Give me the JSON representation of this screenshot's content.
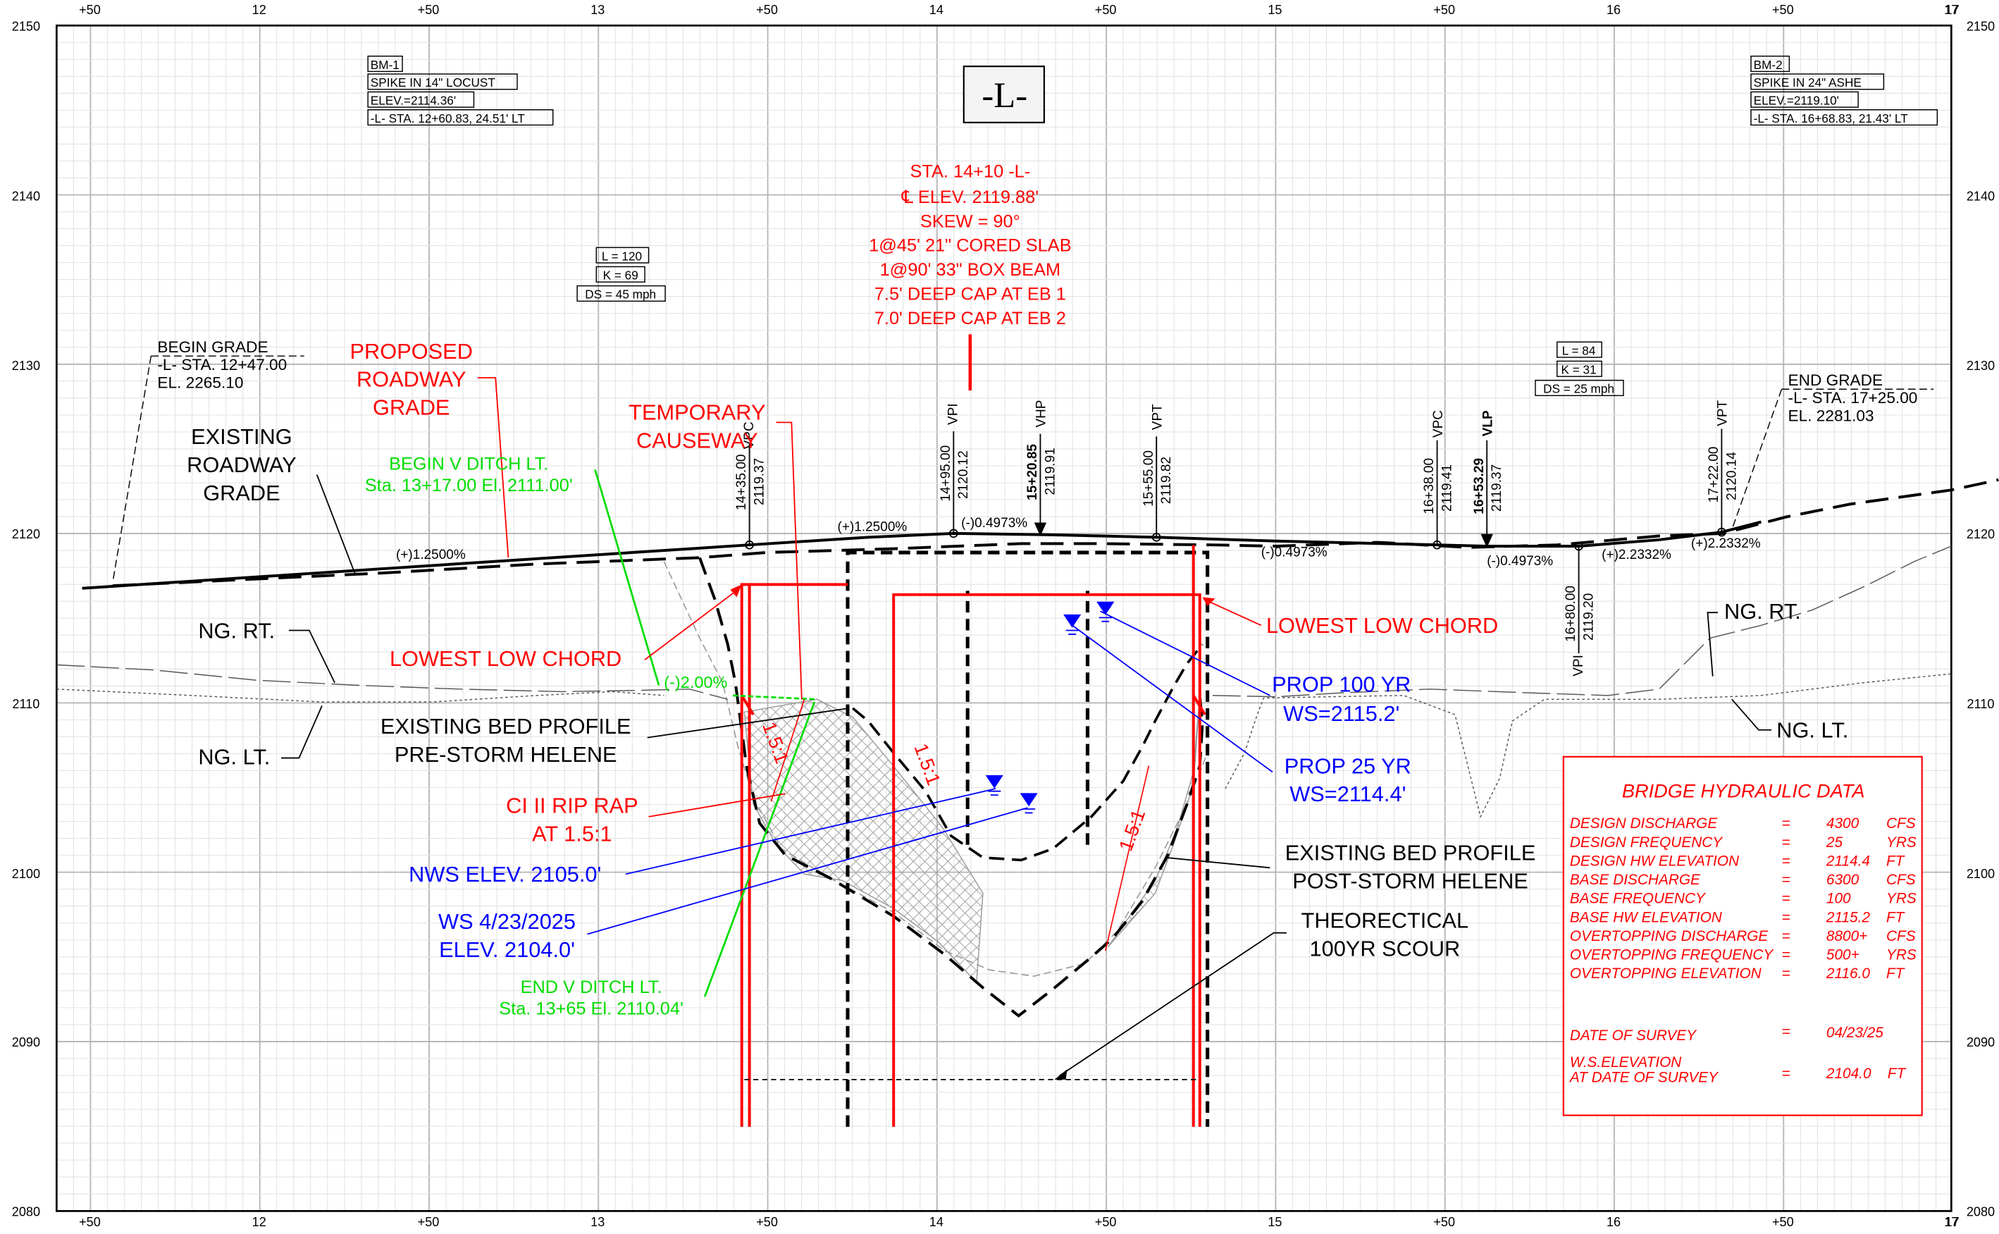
{
  "sheet": {
    "view_title": "-L-",
    "x_station_labels": [
      "+50",
      "12",
      "+50",
      "13",
      "+50",
      "14",
      "+50",
      "15",
      "+50",
      "16",
      "+50",
      "17"
    ],
    "y_elevation_labels": [
      "2150",
      "2140",
      "2130",
      "2120",
      "2110",
      "2100",
      "2090",
      "2080"
    ],
    "right_label_2120": "2120"
  },
  "colors": {
    "black": "#000000",
    "red": "#ff0000",
    "blue": "#0000ff",
    "green": "#00dd00",
    "grid_major": "#b4b4b4",
    "grid_minor": "#e3e3e3",
    "riprap": "#9a9a9a"
  },
  "benchmarks": [
    {
      "id": "BM-1",
      "lines": [
        "BM-1",
        "SPIKE IN 14\" LOCUST",
        "ELEV.=2114.36'",
        "-L- STA. 12+60.83, 24.51' LT"
      ]
    },
    {
      "id": "BM-2",
      "lines": [
        "BM-2",
        "SPIKE IN 24\" ASHE",
        "ELEV.=2119.10'",
        "-L- STA. 16+68.83, 21.43' LT"
      ]
    }
  ],
  "curves": [
    {
      "lines": [
        "L = 120",
        "K = 69",
        "DS = 45 mph"
      ]
    },
    {
      "lines": [
        "L = 84",
        "K = 31",
        "DS = 25 mph"
      ]
    }
  ],
  "bridge_note": [
    "STA. 14+10 -L-",
    "℄ ELEV. 2119.88'",
    "SKEW = 90°",
    "1@45'  21\" CORED SLAB",
    "1@90'  33\" BOX BEAM",
    "7.5' DEEP CAP AT EB 1",
    "7.0' DEEP CAP AT EB 2"
  ],
  "grade_points": [
    {
      "type": "VPC",
      "station": "14+35.00",
      "elev": "2119.37"
    },
    {
      "type": "VPI",
      "station": "14+95.00",
      "elev": "2120.12"
    },
    {
      "type": "VHP",
      "station": "15+20.85",
      "elev": "2119.91"
    },
    {
      "type": "VPT",
      "station": "15+55.00",
      "elev": "2119.82"
    },
    {
      "type": "VPC",
      "station": "16+38.00",
      "elev": "2119.41"
    },
    {
      "type": "VLP",
      "station": "16+53.29",
      "elev": "2119.37"
    },
    {
      "type": "VPI",
      "station": "16+80.00",
      "elev": "2119.20"
    },
    {
      "type": "VPT",
      "station": "17+22.00",
      "elev": "2120.14"
    }
  ],
  "grades": [
    "(+)1.2500%",
    "(+)1.2500%",
    "(-)0.4973%",
    "(-)0.4973%",
    "(-)0.4973%",
    "(+)2.2332%",
    "(+)2.2332%",
    "(-)2.00%"
  ],
  "begin_grade": [
    "BEGIN GRADE",
    "-L- STA. 12+47.00",
    "EL. 2265.10"
  ],
  "end_grade": [
    "END GRADE",
    "-L- STA. 17+25.00",
    "EL. 2281.03"
  ],
  "labels": {
    "proposed_grade": [
      "PROPOSED",
      "ROADWAY",
      "GRADE"
    ],
    "existing_grade": [
      "EXISTING",
      "ROADWAY",
      "GRADE"
    ],
    "temp_causeway": [
      "TEMPORARY",
      "CAUSEWAY"
    ],
    "begin_ditch": [
      "BEGIN V DITCH LT.",
      "Sta. 13+17.00  El.  2111.00'"
    ],
    "end_ditch": [
      "END V DITCH LT.",
      "Sta. 13+65  El.  2110.04'"
    ],
    "ng_rt": "NG. RT.",
    "ng_lt": "NG. LT.",
    "low_chord": "LOWEST LOW CHORD",
    "bed_pre": [
      "EXISTING BED PROFILE",
      "PRE-STORM HELENE"
    ],
    "bed_post": [
      "EXISTING BED PROFILE",
      "POST-STORM HELENE"
    ],
    "riprap": [
      "CI II RIP RAP",
      "AT 1.5:1"
    ],
    "nws": "NWS ELEV. 2105.0'",
    "ws_survey": [
      "WS 4/23/2025",
      "ELEV. 2104.0'"
    ],
    "prop100": [
      "PROP 100 YR",
      "WS=2115.2'"
    ],
    "prop25": [
      "PROP 25 YR",
      "WS=2114.4'"
    ],
    "scour": [
      "THEORECTICAL",
      "100YR SCOUR"
    ],
    "slope": "1.5:1"
  },
  "hydraulic": {
    "title": "BRIDGE  HYDRAULIC  DATA",
    "rows": [
      {
        "label": "DESIGN  DISCHARGE",
        "eq": "=",
        "value": "4300",
        "unit": "CFS"
      },
      {
        "label": "DESIGN  FREQUENCY",
        "eq": "=",
        "value": "25",
        "unit": "YRS"
      },
      {
        "label": "DESIGN  HW  ELEVATION",
        "eq": "=",
        "value": "2114.4",
        "unit": "FT"
      },
      {
        "label": "BASE  DISCHARGE",
        "eq": "=",
        "value": "6300",
        "unit": "CFS"
      },
      {
        "label": "BASE  FREQUENCY",
        "eq": "=",
        "value": "100",
        "unit": "YRS"
      },
      {
        "label": "BASE  HW  ELEVATION",
        "eq": "=",
        "value": "2115.2",
        "unit": "FT"
      },
      {
        "label": "OVERTOPPING  DISCHARGE",
        "eq": "=",
        "value": "8800+",
        "unit": "CFS"
      },
      {
        "label": "OVERTOPPING  FREQUENCY",
        "eq": "=",
        "value": "500+",
        "unit": "YRS"
      },
      {
        "label": "OVERTOPPING  ELEVATION",
        "eq": "=",
        "value": "2116.0",
        "unit": "FT"
      }
    ],
    "survey_date_label": "DATE  OF  SURVEY",
    "survey_date_eq": "=",
    "survey_date": "04/23/25",
    "ws_label": [
      "W.S.ELEVATION",
      "AT  DATE  OF  SURVEY"
    ],
    "ws_eq": "=",
    "ws_value": "2104.0",
    "ws_unit": "FT"
  }
}
